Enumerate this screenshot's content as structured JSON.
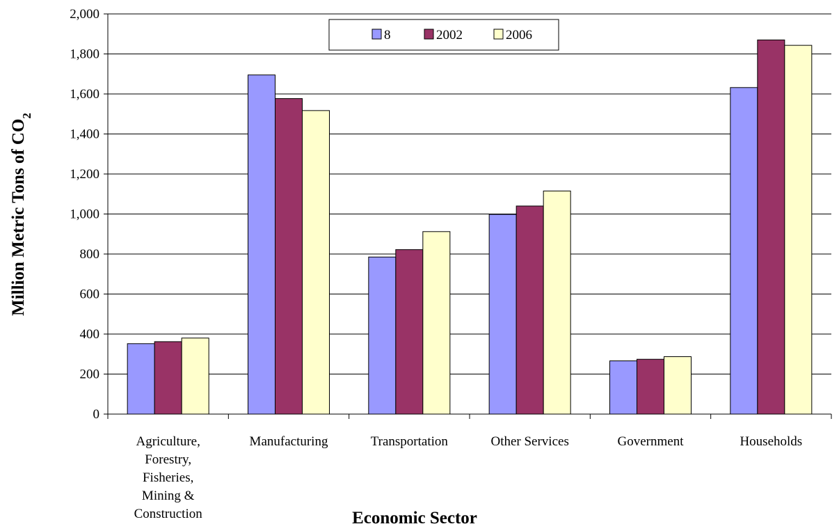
{
  "chart_data": {
    "type": "bar",
    "title": "",
    "xlabel": "Economic Sector",
    "ylabel": "Million Metric Tons of CO",
    "ylabel_subscript": "2",
    "ylim": [
      0,
      2000
    ],
    "yticks": [
      0,
      200,
      400,
      600,
      800,
      1000,
      1200,
      1400,
      1600,
      1800,
      2000
    ],
    "ytick_labels": [
      "0",
      "200",
      "400",
      "600",
      "800",
      "1,000",
      "1,200",
      "1,400",
      "1,600",
      "1,800",
      "2,000"
    ],
    "grid": "horizontal",
    "legend_position": "top-center",
    "categories": [
      [
        "Agriculture,",
        "Forestry,",
        "Fisheries,",
        "Mining &",
        "Construction"
      ],
      [
        "Manufacturing"
      ],
      [
        "Transportation"
      ],
      [
        "Other Services"
      ],
      [
        "Government"
      ],
      [
        "Households"
      ]
    ],
    "series": [
      {
        "name": "8",
        "color": "#9999ff",
        "values": [
          352,
          1695,
          785,
          998,
          266,
          1632
        ]
      },
      {
        "name": "2002",
        "color": "#993366",
        "values": [
          362,
          1577,
          822,
          1040,
          274,
          1870
        ]
      },
      {
        "name": "2006",
        "color": "#ffffcc",
        "values": [
          380,
          1517,
          912,
          1115,
          287,
          1843
        ]
      }
    ]
  }
}
